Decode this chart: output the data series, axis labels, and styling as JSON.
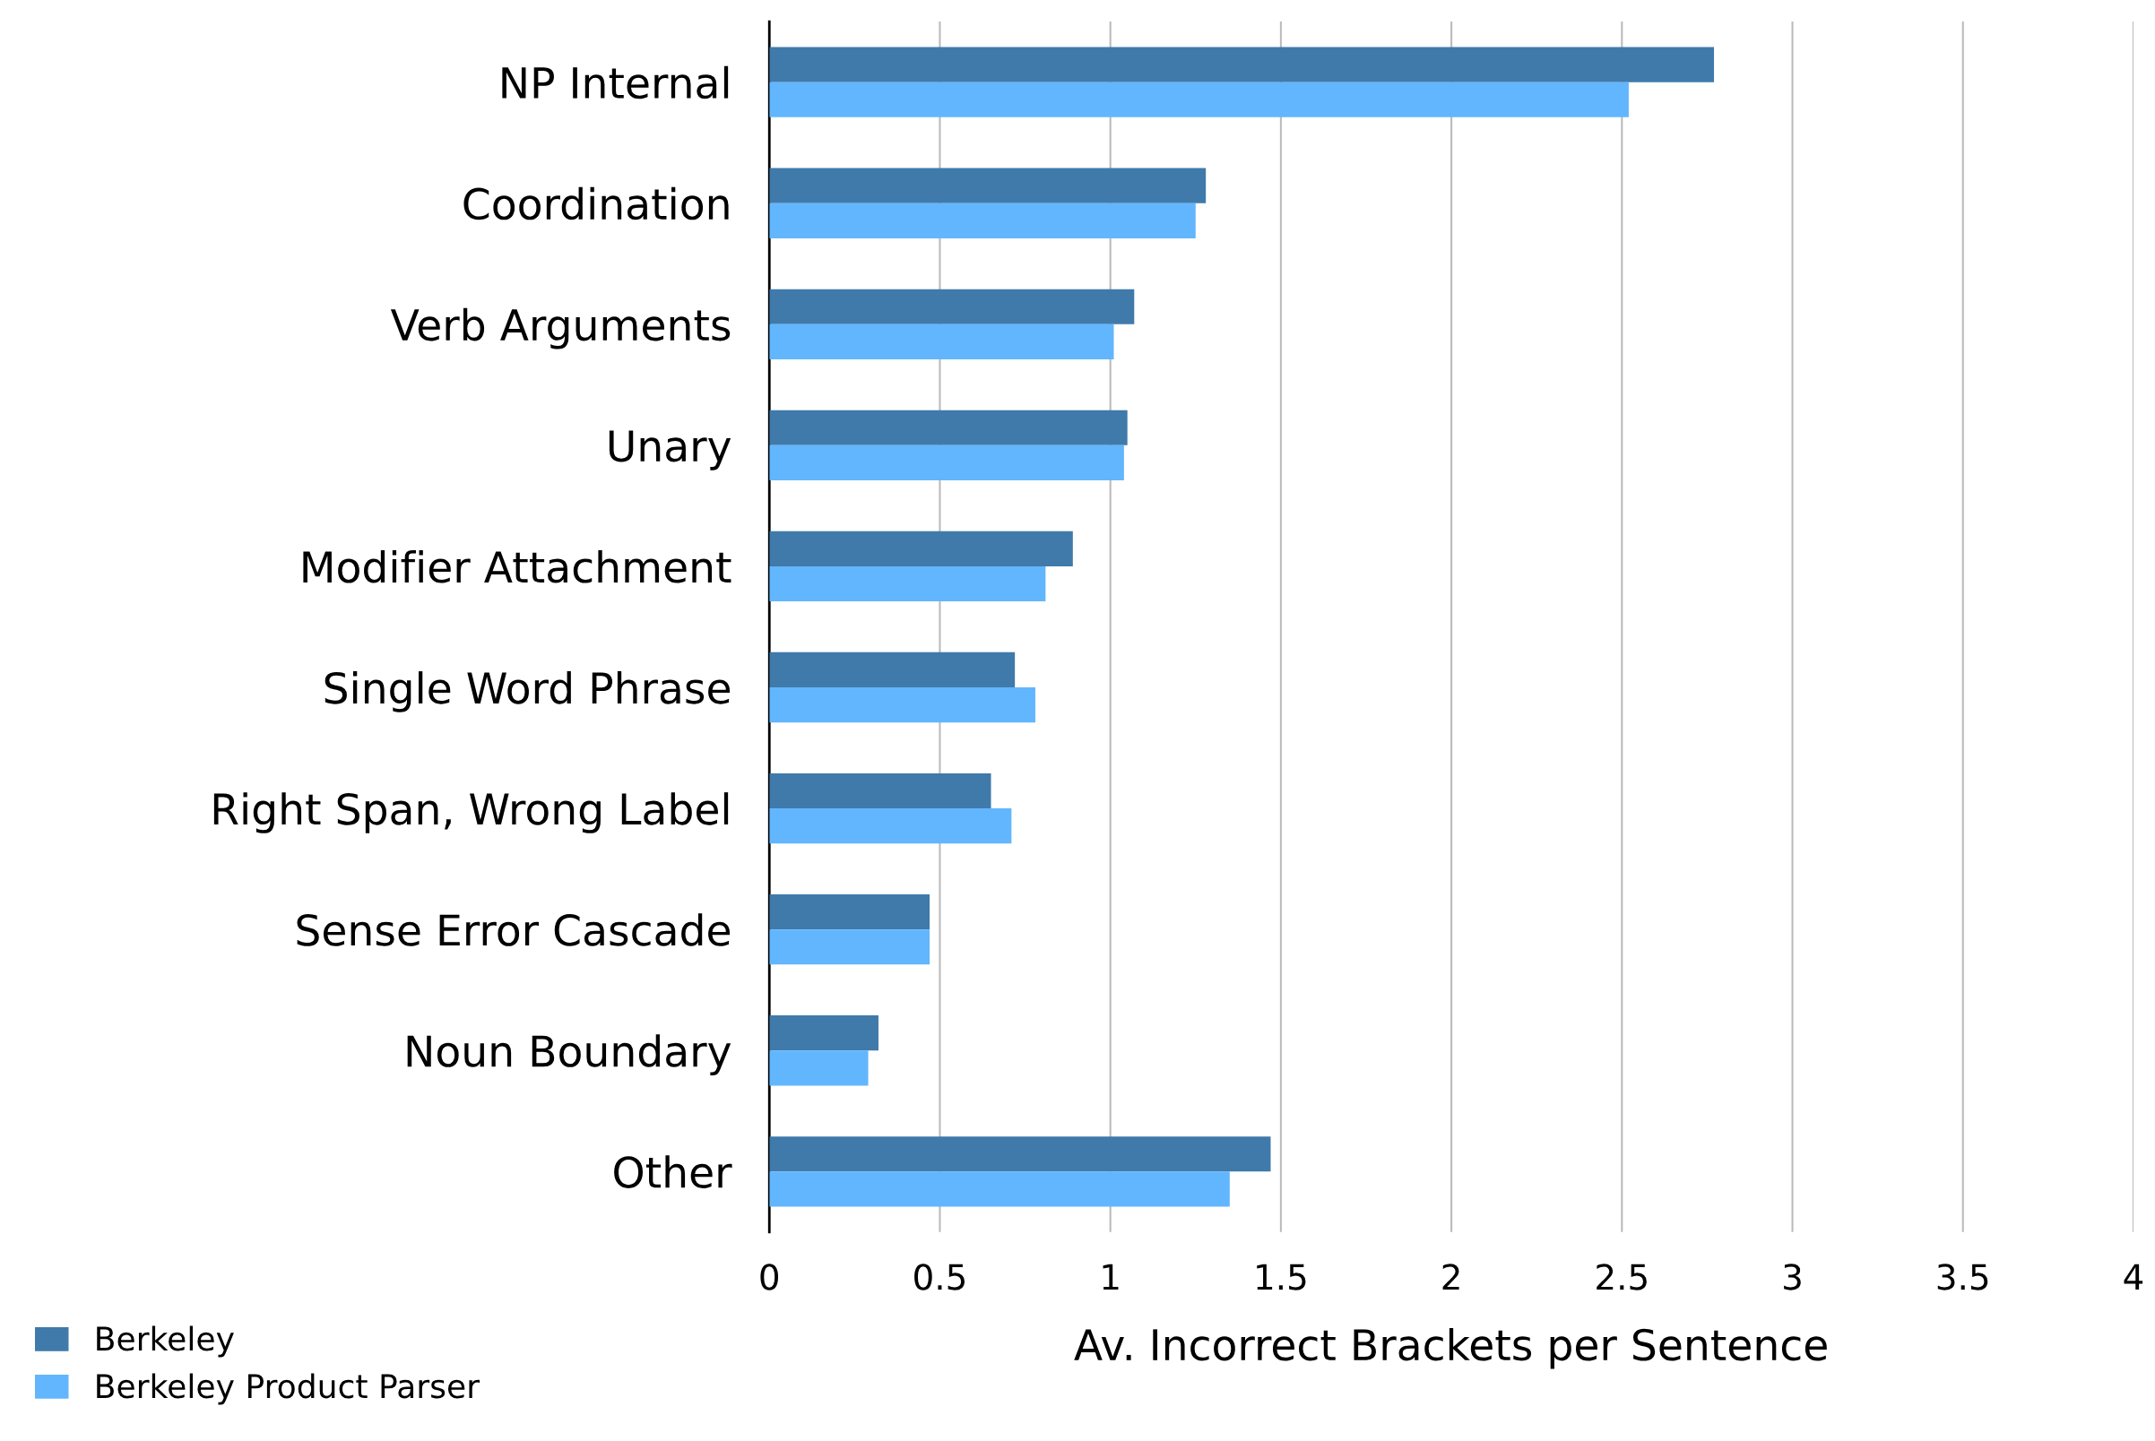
{
  "chart_data": {
    "type": "bar",
    "orientation": "horizontal",
    "xlabel": "Av. Incorrect Brackets per Sentence",
    "categories": [
      "NP Internal",
      "Coordination",
      "Verb Arguments",
      "Unary",
      "Modifier Attachment",
      "Single Word Phrase",
      "Right Span, Wrong Label",
      "Sense Error Cascade",
      "Noun Boundary",
      "Other"
    ],
    "series": [
      {
        "name": "Berkeley",
        "color": "#3f7aab",
        "values": [
          2.77,
          1.28,
          1.07,
          1.05,
          0.89,
          0.72,
          0.65,
          0.47,
          0.32,
          1.47
        ]
      },
      {
        "name": "Berkeley Product Parser",
        "color": "#62b6fd",
        "values": [
          2.52,
          1.25,
          1.01,
          1.04,
          0.81,
          0.78,
          0.71,
          0.47,
          0.29,
          1.35
        ]
      }
    ],
    "xlim": [
      0,
      4
    ],
    "xticks": [
      0,
      0.5,
      1,
      1.5,
      2,
      2.5,
      3,
      3.5,
      4
    ],
    "grid": "x",
    "legend": "bottom left"
  }
}
